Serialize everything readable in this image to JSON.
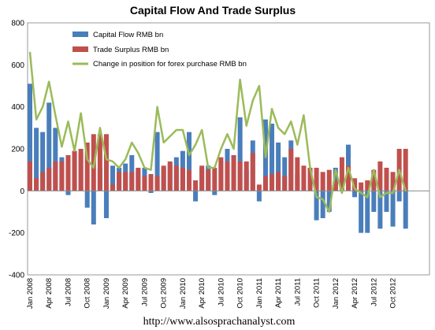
{
  "chart_data": {
    "type": "bar",
    "title": "Capital Flow And Trade Surplus",
    "footer": "http://www.alsosprachanalyst.com",
    "ylim": [
      -400,
      800
    ],
    "yticks": [
      "800",
      "600",
      "400",
      "200",
      "0",
      "-200",
      "-400"
    ],
    "ytick_values": [
      800,
      600,
      400,
      200,
      0,
      -200,
      -400
    ],
    "grid": false,
    "legend_position": "top-left",
    "x_tick_labels": [
      {
        "index": 0,
        "label": "Jan 2008"
      },
      {
        "index": 3,
        "label": "Apr 2008"
      },
      {
        "index": 6,
        "label": "Jul 2008"
      },
      {
        "index": 9,
        "label": "Oct 2008"
      },
      {
        "index": 12,
        "label": "Jan 2009"
      },
      {
        "index": 15,
        "label": "Apr 2009"
      },
      {
        "index": 18,
        "label": "Jul 2009"
      },
      {
        "index": 21,
        "label": "Oct 2009"
      },
      {
        "index": 24,
        "label": "Jan 2010"
      },
      {
        "index": 27,
        "label": "Apr 2010"
      },
      {
        "index": 30,
        "label": "Jul 2010"
      },
      {
        "index": 33,
        "label": "Oct 2010"
      },
      {
        "index": 36,
        "label": "Jan 2011"
      },
      {
        "index": 39,
        "label": "Apr 2011"
      },
      {
        "index": 42,
        "label": "Jul 2011"
      },
      {
        "index": 45,
        "label": "Oct 2011"
      },
      {
        "index": 48,
        "label": "Jan 2012"
      },
      {
        "index": 51,
        "label": "Apr 2012"
      },
      {
        "index": 54,
        "label": "Jul 2012"
      },
      {
        "index": 57,
        "label": "Oct 2012"
      }
    ],
    "series": [
      {
        "name": "Capital Flow RMB bn",
        "kind": "bar",
        "color": "#4a7ebb",
        "values": [
          510,
          300,
          280,
          420,
          300,
          160,
          -20,
          190,
          180,
          -80,
          -160,
          110,
          -130,
          120,
          110,
          130,
          170,
          100,
          110,
          -10,
          280,
          110,
          130,
          160,
          190,
          280,
          -50,
          110,
          120,
          -20,
          140,
          200,
          170,
          350,
          100,
          240,
          -50,
          340,
          320,
          230,
          160,
          240,
          80,
          20,
          0,
          -140,
          -130,
          -100,
          110,
          50,
          220,
          -30,
          -200,
          -200,
          -100,
          -180,
          -100,
          -170,
          -50,
          -180
        ]
      },
      {
        "name": "Trade Surplus RMB bn",
        "kind": "bar",
        "color": "#c0504d",
        "values": [
          140,
          60,
          90,
          110,
          140,
          140,
          170,
          190,
          200,
          230,
          270,
          270,
          270,
          30,
          90,
          90,
          90,
          110,
          70,
          80,
          70,
          120,
          140,
          120,
          110,
          100,
          50,
          120,
          100,
          110,
          160,
          140,
          170,
          140,
          140,
          180,
          30,
          70,
          80,
          90,
          70,
          200,
          160,
          120,
          110,
          110,
          90,
          100,
          50,
          160,
          120,
          60,
          40,
          50,
          100,
          140,
          110,
          90,
          200,
          200
        ]
      },
      {
        "name": "Change in position for forex purchase RMB bn",
        "kind": "line",
        "color": "#9bbb59",
        "values": [
          660,
          340,
          400,
          520,
          360,
          210,
          330,
          190,
          370,
          150,
          110,
          300,
          150,
          140,
          110,
          150,
          230,
          180,
          110,
          100,
          400,
          230,
          260,
          290,
          290,
          170,
          220,
          290,
          110,
          110,
          200,
          270,
          200,
          530,
          310,
          430,
          500,
          160,
          390,
          300,
          270,
          330,
          220,
          360,
          110,
          -30,
          -40,
          -100,
          100,
          -10,
          110,
          10,
          -10,
          -30,
          100,
          -30,
          -10,
          -10,
          100,
          0
        ]
      }
    ]
  }
}
